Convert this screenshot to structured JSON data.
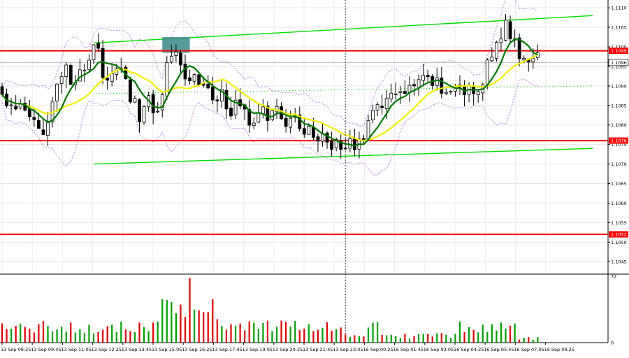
{
  "chart_data": {
    "type": "candlestick",
    "symbol_hint": "",
    "y_ticks": [
      "1.1110",
      "1.1105",
      "1.1100",
      "1.1095",
      "1.1090",
      "1.1085",
      "1.1080",
      "1.1075",
      "1.1070",
      "1.1065",
      "1.1060",
      "1.1055",
      "1.1050",
      "1.1045"
    ],
    "ylim": [
      1.1042,
      1.1112
    ],
    "x_labels": [
      "13 Sep 08:25",
      "13 Sep 09:45",
      "13 Sep 11:05",
      "13 Sep 12:25",
      "13 Sep 13:45",
      "13 Sep 15:05",
      "13 Sep 16:25",
      "13 Sep 17:45",
      "13 Sep 19:05",
      "13 Sep 20:25",
      "13 Sep 21:45",
      "13 Sep 23:05",
      "16 Sep 00:25",
      "16 Sep 01:45",
      "16 Sep 03:05",
      "16 Sep 04:25",
      "16 Sep 05:45",
      "16 Sep 07:05",
      "16 Sep 08:25"
    ],
    "levels": [
      {
        "label": "1.1099",
        "value": 1.1099,
        "color": "#ff0000"
      },
      {
        "label": "1.1076",
        "value": 1.1076,
        "color": "#ff0000"
      },
      {
        "label": "1.1052",
        "value": 1.1052,
        "color": "#ff0000"
      }
    ],
    "current_price": {
      "label": "1.1096",
      "value": 1.1096
    },
    "channel_lines": [
      {
        "from": [
          20,
          1.1101
        ],
        "to": [
          129,
          1.1108
        ],
        "color": "#00dd00"
      },
      {
        "from": [
          20,
          1.107
        ],
        "to": [
          129,
          1.1074
        ],
        "color": "#00dd00"
      }
    ],
    "dotted_trend": {
      "from": [
        20,
        1.1088
      ],
      "to": [
        129,
        1.109
      ],
      "color": "#00cc00"
    },
    "highlight_box": {
      "x_from": 35,
      "x_to": 41,
      "y_from": 1.10985,
      "y_to": 1.11025,
      "color": "#3a8a8a"
    },
    "session_divider_index": 75,
    "anchors": [
      [
        0,
        1.1087
      ],
      [
        3,
        1.1085
      ],
      [
        6,
        1.1081
      ],
      [
        8,
        1.1077
      ],
      [
        10,
        1.1083
      ],
      [
        12,
        1.1091
      ],
      [
        14,
        1.1093
      ],
      [
        16,
        1.1089
      ],
      [
        18,
        1.1095
      ],
      [
        20,
        1.1101
      ],
      [
        22,
        1.1094
      ],
      [
        24,
        1.1092
      ],
      [
        26,
        1.1093
      ],
      [
        28,
        1.1088
      ],
      [
        30,
        1.1083
      ],
      [
        32,
        1.1086
      ],
      [
        34,
        1.1084
      ],
      [
        36,
        1.1095
      ],
      [
        38,
        1.1101
      ],
      [
        40,
        1.1094
      ],
      [
        42,
        1.1092
      ],
      [
        44,
        1.1091
      ],
      [
        46,
        1.1087
      ],
      [
        48,
        1.1088
      ],
      [
        50,
        1.1084
      ],
      [
        52,
        1.1085
      ],
      [
        54,
        1.1079
      ],
      [
        56,
        1.1084
      ],
      [
        58,
        1.1082
      ],
      [
        60,
        1.1083
      ],
      [
        62,
        1.1082
      ],
      [
        64,
        1.1081
      ],
      [
        66,
        1.1079
      ],
      [
        68,
        1.1077
      ],
      [
        70,
        1.1078
      ],
      [
        72,
        1.1076
      ],
      [
        74,
        1.1073
      ],
      [
        76,
        1.1075
      ],
      [
        78,
        1.1077
      ],
      [
        80,
        1.1079
      ],
      [
        82,
        1.1084
      ],
      [
        84,
        1.1088
      ],
      [
        86,
        1.1088
      ],
      [
        88,
        1.1087
      ],
      [
        90,
        1.1089
      ],
      [
        92,
        1.1091
      ],
      [
        94,
        1.1091
      ],
      [
        96,
        1.1089
      ],
      [
        98,
        1.109
      ],
      [
        100,
        1.1089
      ],
      [
        102,
        1.1088
      ],
      [
        104,
        1.1088
      ],
      [
        106,
        1.1096
      ],
      [
        108,
        1.1103
      ],
      [
        110,
        1.1105
      ],
      [
        112,
        1.11
      ],
      [
        114,
        1.1098
      ],
      [
        116,
        1.1096
      ],
      [
        117,
        1.1096
      ]
    ],
    "volume_ylim": [
      0,
      72
    ],
    "volume_ticks": [
      "72",
      "0"
    ]
  }
}
